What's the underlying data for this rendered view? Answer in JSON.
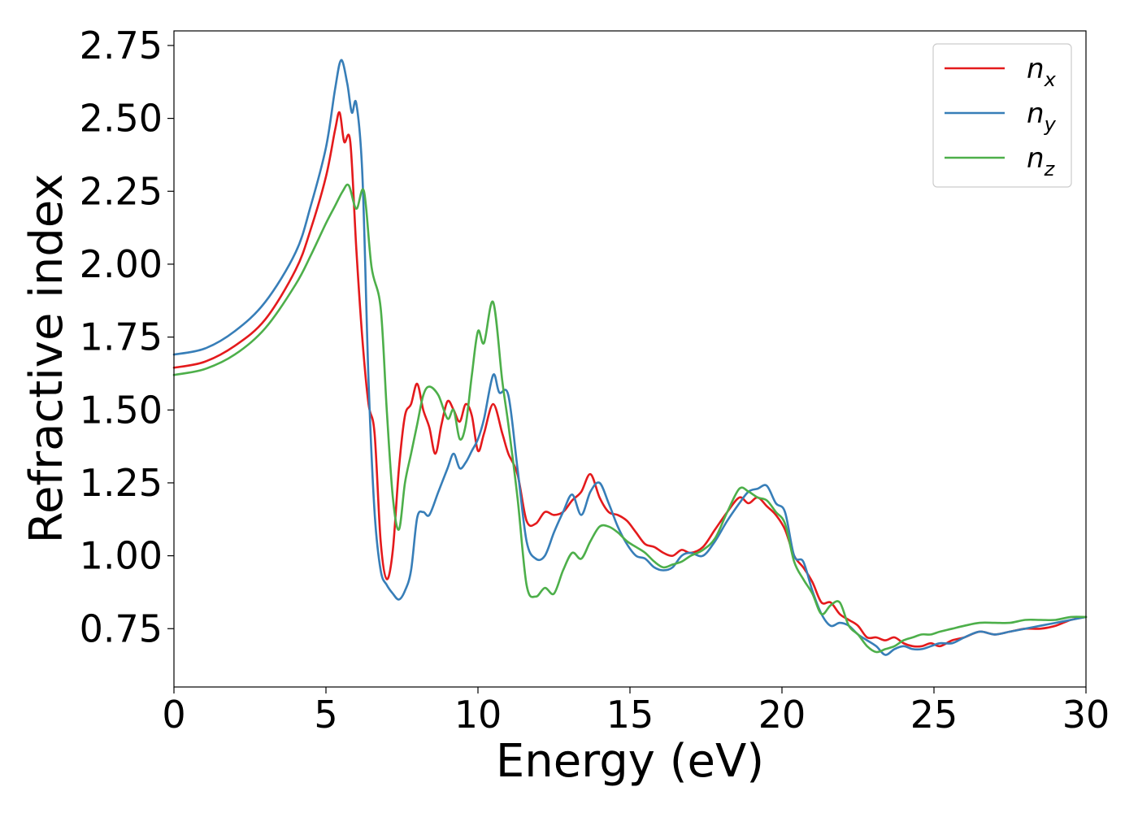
{
  "chart_data": {
    "type": "line",
    "xlabel": "Energy (eV)",
    "ylabel": "Refractive index",
    "xlim": [
      0,
      30
    ],
    "ylim": [
      0.55,
      2.8
    ],
    "xticks": [
      "0",
      "5",
      "10",
      "15",
      "20",
      "25",
      "30"
    ],
    "yticks": [
      "0.75",
      "1.00",
      "1.25",
      "1.50",
      "1.75",
      "2.00",
      "2.25",
      "2.50",
      "2.75"
    ],
    "grid": false,
    "legend_position": "top-right",
    "series": [
      {
        "name": "n",
        "subscript": "x",
        "color": "#e41a1c",
        "x": [
          0,
          1,
          2,
          3,
          4,
          4.5,
          5,
          5.3,
          5.45,
          5.6,
          5.8,
          6.0,
          6.2,
          6.4,
          6.6,
          6.8,
          7.0,
          7.2,
          7.4,
          7.6,
          7.8,
          8.0,
          8.2,
          8.4,
          8.6,
          8.8,
          9.0,
          9.2,
          9.4,
          9.6,
          9.8,
          10.0,
          10.2,
          10.5,
          10.8,
          11.0,
          11.3,
          11.6,
          11.9,
          12.2,
          12.5,
          12.8,
          13.1,
          13.4,
          13.7,
          14.0,
          14.3,
          14.6,
          14.9,
          15.2,
          15.5,
          15.8,
          16.1,
          16.4,
          16.7,
          17.0,
          17.4,
          17.8,
          18.2,
          18.6,
          18.9,
          19.2,
          19.5,
          19.8,
          20.1,
          20.4,
          20.7,
          21.0,
          21.3,
          21.6,
          21.9,
          22.2,
          22.5,
          22.8,
          23.1,
          23.4,
          23.7,
          24.0,
          24.3,
          24.6,
          24.9,
          25.2,
          25.6,
          26.0,
          26.5,
          27.0,
          27.5,
          28.0,
          28.5,
          29.0,
          29.5,
          30.0
        ],
        "y": [
          1.645,
          1.665,
          1.72,
          1.81,
          1.98,
          2.12,
          2.3,
          2.46,
          2.52,
          2.42,
          2.42,
          2.05,
          1.74,
          1.52,
          1.42,
          1.05,
          0.92,
          1.02,
          1.3,
          1.48,
          1.52,
          1.59,
          1.5,
          1.44,
          1.35,
          1.45,
          1.53,
          1.5,
          1.46,
          1.52,
          1.48,
          1.36,
          1.42,
          1.52,
          1.42,
          1.35,
          1.28,
          1.12,
          1.11,
          1.15,
          1.14,
          1.15,
          1.19,
          1.22,
          1.28,
          1.2,
          1.15,
          1.14,
          1.12,
          1.08,
          1.04,
          1.03,
          1.01,
          1.0,
          1.02,
          1.01,
          1.03,
          1.09,
          1.15,
          1.2,
          1.18,
          1.2,
          1.17,
          1.14,
          1.09,
          1.0,
          0.96,
          0.91,
          0.84,
          0.84,
          0.8,
          0.78,
          0.76,
          0.72,
          0.72,
          0.71,
          0.72,
          0.7,
          0.69,
          0.69,
          0.7,
          0.69,
          0.71,
          0.72,
          0.74,
          0.73,
          0.74,
          0.75,
          0.75,
          0.76,
          0.78,
          0.79
        ]
      },
      {
        "name": "n",
        "subscript": "y",
        "color": "#377eb8",
        "x": [
          0,
          1,
          2,
          3,
          4,
          4.5,
          5,
          5.3,
          5.5,
          5.7,
          5.85,
          6.0,
          6.2,
          6.4,
          6.6,
          6.8,
          7.0,
          7.2,
          7.4,
          7.6,
          7.8,
          8.0,
          8.2,
          8.4,
          8.7,
          9.0,
          9.2,
          9.4,
          9.6,
          9.8,
          10.0,
          10.2,
          10.5,
          10.7,
          11.0,
          11.3,
          11.6,
          11.9,
          12.2,
          12.5,
          12.8,
          13.1,
          13.4,
          13.7,
          14.0,
          14.3,
          14.6,
          14.9,
          15.2,
          15.5,
          15.8,
          16.1,
          16.4,
          16.7,
          17.0,
          17.4,
          17.8,
          18.2,
          18.6,
          18.9,
          19.2,
          19.5,
          19.8,
          20.1,
          20.4,
          20.7,
          21.0,
          21.3,
          21.6,
          21.9,
          22.2,
          22.5,
          22.8,
          23.1,
          23.4,
          23.7,
          24.0,
          24.3,
          24.6,
          24.9,
          25.2,
          25.6,
          26.0,
          26.5,
          27.0,
          27.5,
          28.0,
          28.5,
          29.0,
          29.5,
          30.0
        ],
        "y": [
          1.69,
          1.71,
          1.77,
          1.87,
          2.04,
          2.2,
          2.4,
          2.6,
          2.7,
          2.62,
          2.52,
          2.55,
          2.3,
          1.6,
          1.15,
          0.95,
          0.9,
          0.87,
          0.85,
          0.88,
          0.95,
          1.13,
          1.15,
          1.14,
          1.22,
          1.3,
          1.35,
          1.3,
          1.32,
          1.36,
          1.4,
          1.47,
          1.62,
          1.56,
          1.55,
          1.3,
          1.05,
          0.99,
          1.0,
          1.08,
          1.15,
          1.21,
          1.14,
          1.22,
          1.25,
          1.18,
          1.1,
          1.04,
          1.0,
          0.99,
          0.96,
          0.95,
          0.96,
          1.0,
          1.01,
          1.0,
          1.05,
          1.12,
          1.18,
          1.22,
          1.23,
          1.24,
          1.18,
          1.15,
          1.0,
          0.98,
          0.88,
          0.8,
          0.76,
          0.77,
          0.76,
          0.73,
          0.71,
          0.69,
          0.66,
          0.68,
          0.69,
          0.68,
          0.68,
          0.69,
          0.7,
          0.7,
          0.72,
          0.74,
          0.73,
          0.74,
          0.75,
          0.76,
          0.77,
          0.78,
          0.79
        ]
      },
      {
        "name": "n",
        "subscript": "z",
        "color": "#4daf4a",
        "x": [
          0,
          1,
          2,
          3,
          4,
          4.5,
          5,
          5.3,
          5.55,
          5.75,
          6.0,
          6.25,
          6.5,
          6.8,
          7.0,
          7.2,
          7.4,
          7.6,
          7.8,
          8.0,
          8.2,
          8.4,
          8.7,
          9.0,
          9.2,
          9.4,
          9.6,
          9.8,
          10.0,
          10.2,
          10.5,
          10.8,
          11.0,
          11.3,
          11.6,
          11.9,
          12.2,
          12.5,
          12.8,
          13.1,
          13.4,
          13.7,
          14.0,
          14.3,
          14.6,
          14.9,
          15.2,
          15.5,
          15.8,
          16.1,
          16.4,
          16.7,
          17.0,
          17.4,
          17.8,
          18.2,
          18.6,
          18.9,
          19.2,
          19.5,
          19.8,
          20.1,
          20.4,
          20.7,
          21.0,
          21.3,
          21.6,
          21.9,
          22.2,
          22.5,
          22.8,
          23.1,
          23.4,
          23.7,
          24.0,
          24.3,
          24.6,
          24.9,
          25.2,
          25.6,
          26.0,
          26.5,
          27.0,
          27.5,
          28.0,
          28.5,
          29.0,
          29.5,
          30.0
        ],
        "y": [
          1.62,
          1.64,
          1.69,
          1.78,
          1.93,
          2.03,
          2.14,
          2.2,
          2.25,
          2.27,
          2.19,
          2.25,
          1.99,
          1.85,
          1.5,
          1.2,
          1.09,
          1.25,
          1.35,
          1.45,
          1.55,
          1.58,
          1.55,
          1.47,
          1.5,
          1.4,
          1.45,
          1.62,
          1.77,
          1.73,
          1.87,
          1.6,
          1.45,
          1.2,
          0.9,
          0.86,
          0.89,
          0.87,
          0.95,
          1.01,
          0.99,
          1.05,
          1.1,
          1.1,
          1.08,
          1.05,
          1.03,
          1.01,
          0.98,
          0.96,
          0.97,
          0.98,
          1.0,
          1.02,
          1.06,
          1.15,
          1.23,
          1.22,
          1.2,
          1.19,
          1.15,
          1.11,
          0.98,
          0.92,
          0.87,
          0.8,
          0.83,
          0.84,
          0.76,
          0.73,
          0.69,
          0.67,
          0.68,
          0.69,
          0.71,
          0.72,
          0.73,
          0.73,
          0.74,
          0.75,
          0.76,
          0.77,
          0.77,
          0.77,
          0.78,
          0.78,
          0.78,
          0.79,
          0.79
        ]
      }
    ]
  }
}
